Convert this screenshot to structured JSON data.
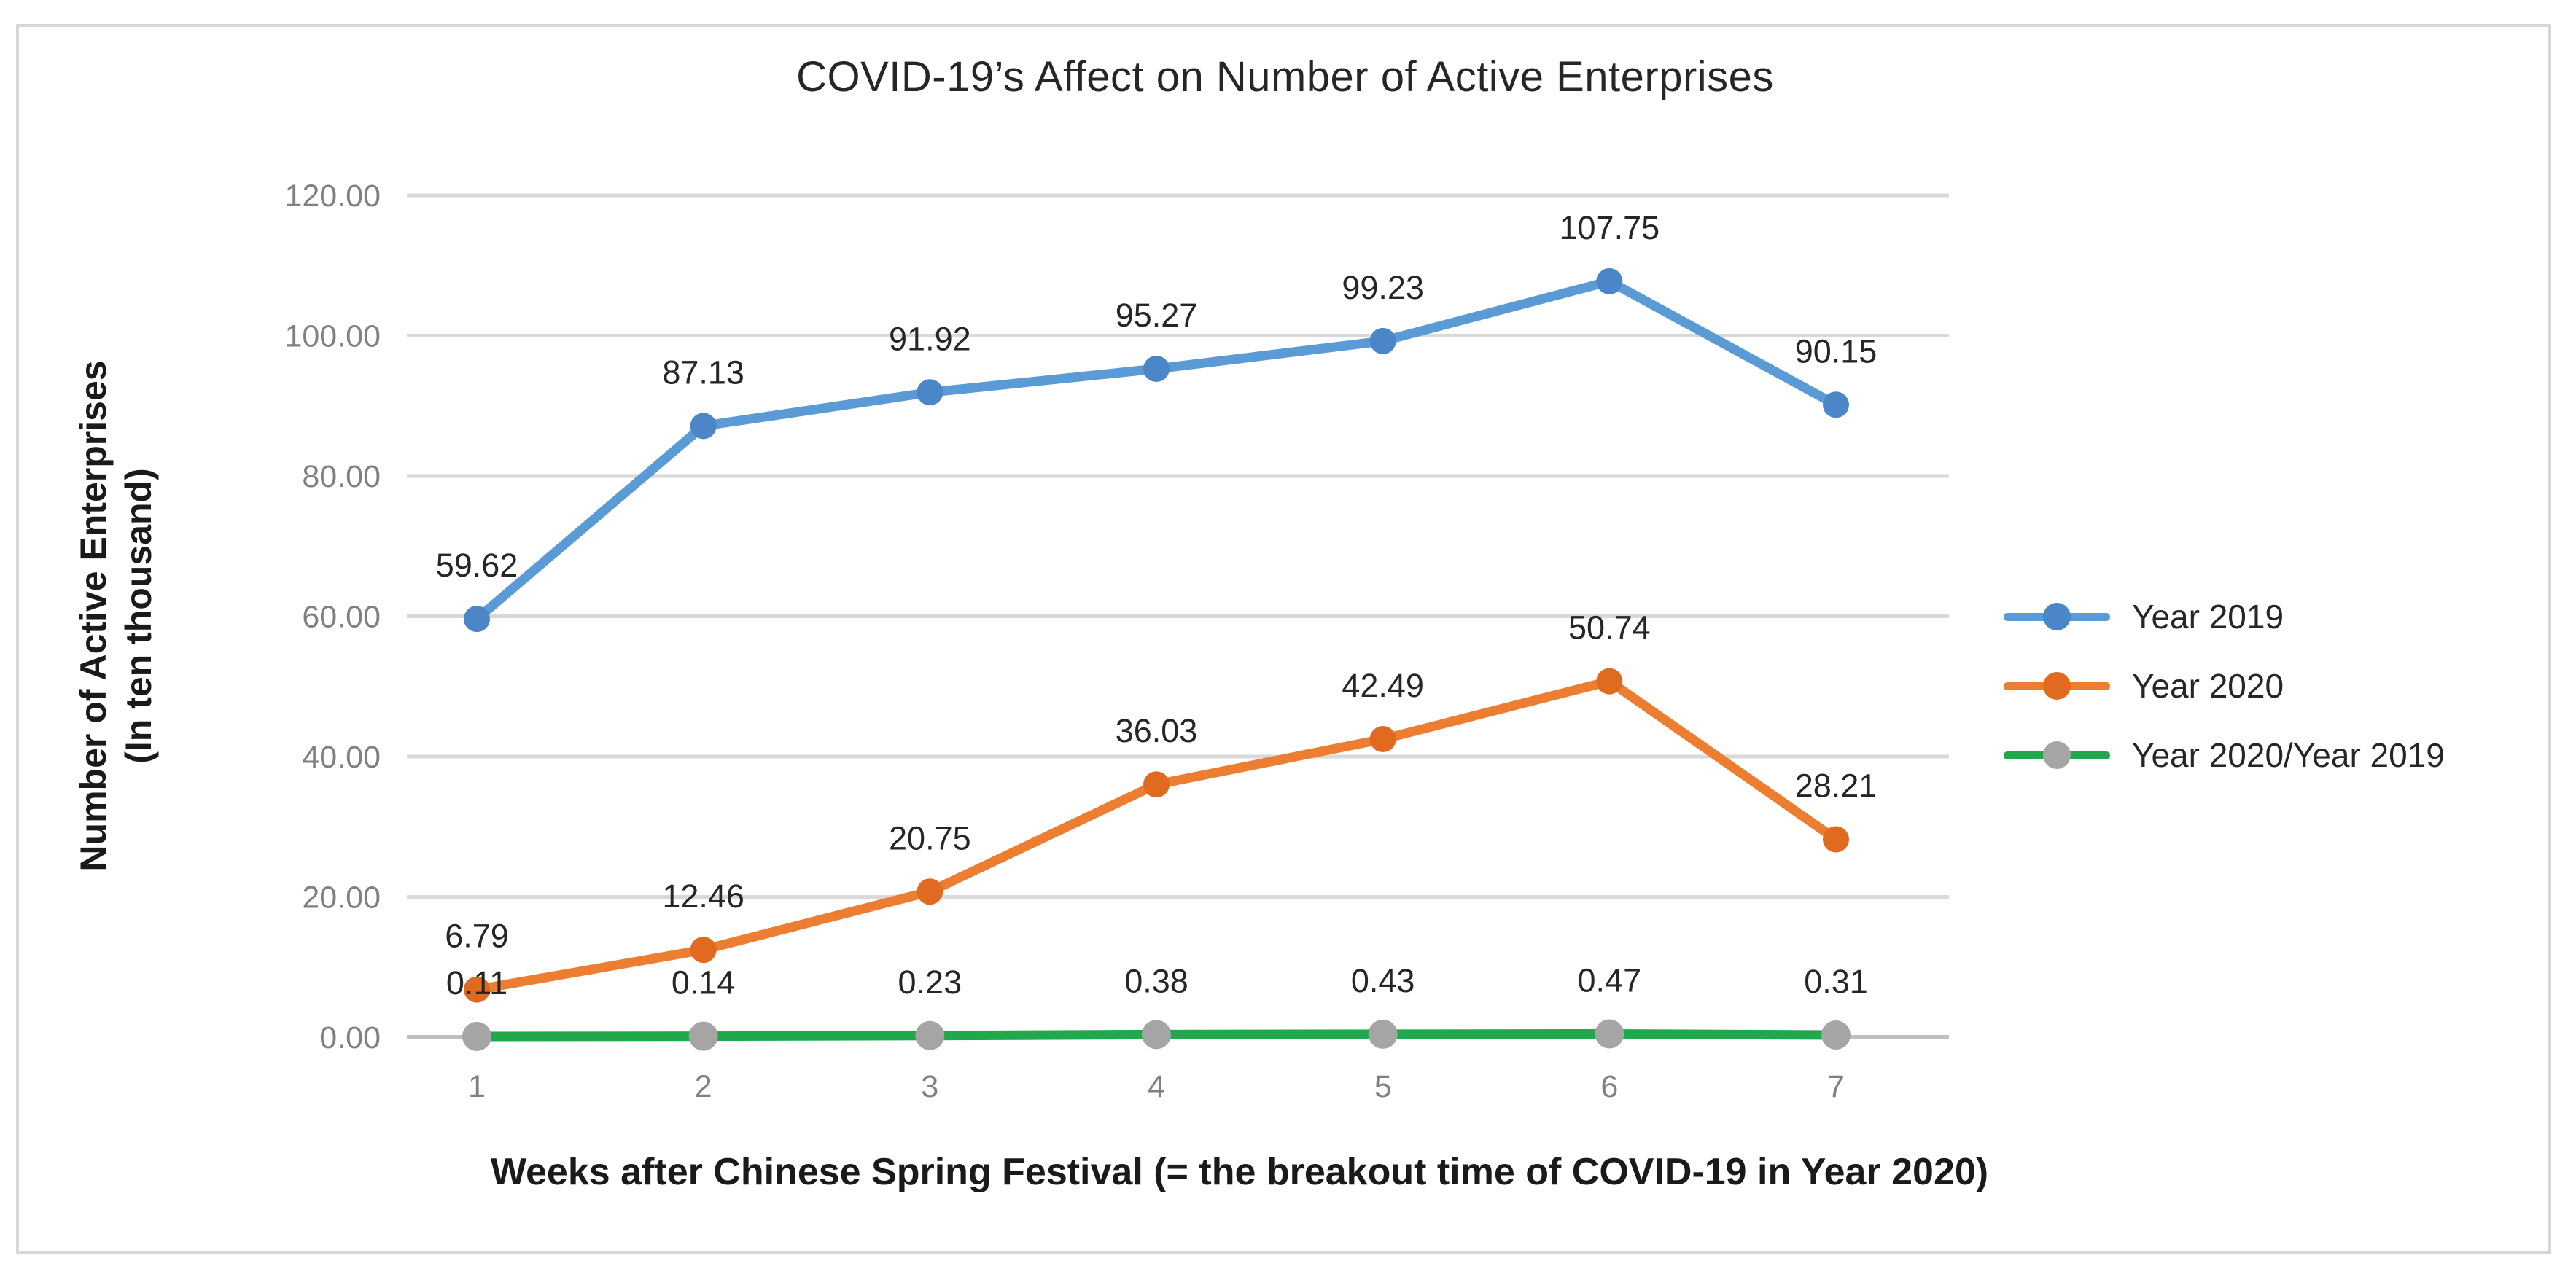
{
  "chart_data": {
    "type": "line",
    "title": "COVID-19’s Affect on Number of Active Enterprises",
    "xlabel": "Weeks after Chinese Spring Festival (= the breakout time of COVID-19 in Year 2020)",
    "ylabel": "Number of Active Enterprises",
    "ylabel_line2": "(In ten thousand)",
    "categories": [
      1,
      2,
      3,
      4,
      5,
      6,
      7
    ],
    "series": [
      {
        "name": "Year 2019",
        "values": [
          59.62,
          87.13,
          91.92,
          95.27,
          99.23,
          107.75,
          90.15
        ],
        "line_color": "#5B9BD5",
        "marker_color": "#4A86C8"
      },
      {
        "name": "Year 2020",
        "values": [
          6.79,
          12.46,
          20.75,
          36.03,
          42.49,
          50.74,
          28.21
        ],
        "line_color": "#ED7D31",
        "marker_color": "#E06B20"
      },
      {
        "name": "Year 2020/Year 2019",
        "values": [
          0.11,
          0.14,
          0.23,
          0.38,
          0.43,
          0.47,
          0.31
        ],
        "line_color": "#21A84D",
        "marker_color": "#A5A5A5"
      }
    ],
    "ylim": [
      0,
      120
    ],
    "ytick_step": 20,
    "grid": true,
    "legend_position": "right",
    "data_labels_shown": true
  },
  "colors": {
    "background": "#FFFFFF",
    "border": "#D6D6D6",
    "gridline": "#D9D9D9",
    "axis_line": "#BFBFBF",
    "tick_text": "#808080",
    "title_text": "#262626",
    "data_label_text": "#262626",
    "axis_title_text": "#1A1A1A"
  }
}
